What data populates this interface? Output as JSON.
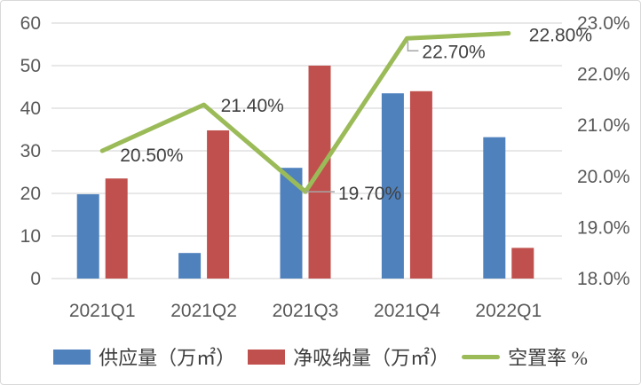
{
  "chart_data": {
    "type": "combo",
    "title": "",
    "categories": [
      "2021Q1",
      "2021Q2",
      "2021Q3",
      "2021Q4",
      "2022Q1"
    ],
    "series": [
      {
        "name": "供应量（万㎡）",
        "type": "bar",
        "axis": "left",
        "color": "#4F81BD",
        "values": [
          19.8,
          6.0,
          26.0,
          43.5,
          33.2
        ]
      },
      {
        "name": "净吸纳量（万㎡）",
        "type": "bar",
        "axis": "left",
        "color": "#C0504D",
        "values": [
          23.5,
          34.8,
          50.0,
          44.0,
          7.2
        ]
      },
      {
        "name": "空置率 %",
        "type": "line",
        "axis": "right",
        "color": "#9BBB59",
        "values": [
          20.5,
          21.4,
          19.7,
          22.7,
          22.8
        ],
        "point_labels": [
          "20.50%",
          "21.40%",
          "19.70%",
          "22.70%",
          "22.80%"
        ]
      }
    ],
    "left_axis": {
      "min": 0,
      "max": 60,
      "step": 10,
      "tick_labels": [
        "60",
        "50",
        "40",
        "30",
        "20",
        "10",
        "0"
      ]
    },
    "right_axis": {
      "min": 18,
      "max": 23,
      "step": 1,
      "tick_labels": [
        "23.0%",
        "22.0%",
        "21.0%",
        "20.0%",
        "19.0%",
        "18.0%"
      ]
    },
    "grid": true,
    "legend_position": "bottom"
  },
  "styles": {
    "background": "#FFFFFF",
    "border_color": "#D9D9D9",
    "grid_color": "#D9D9D9",
    "axis_text_color": "#595959",
    "data_label_color": "#404040",
    "leader_color": "#A6A6A6"
  }
}
